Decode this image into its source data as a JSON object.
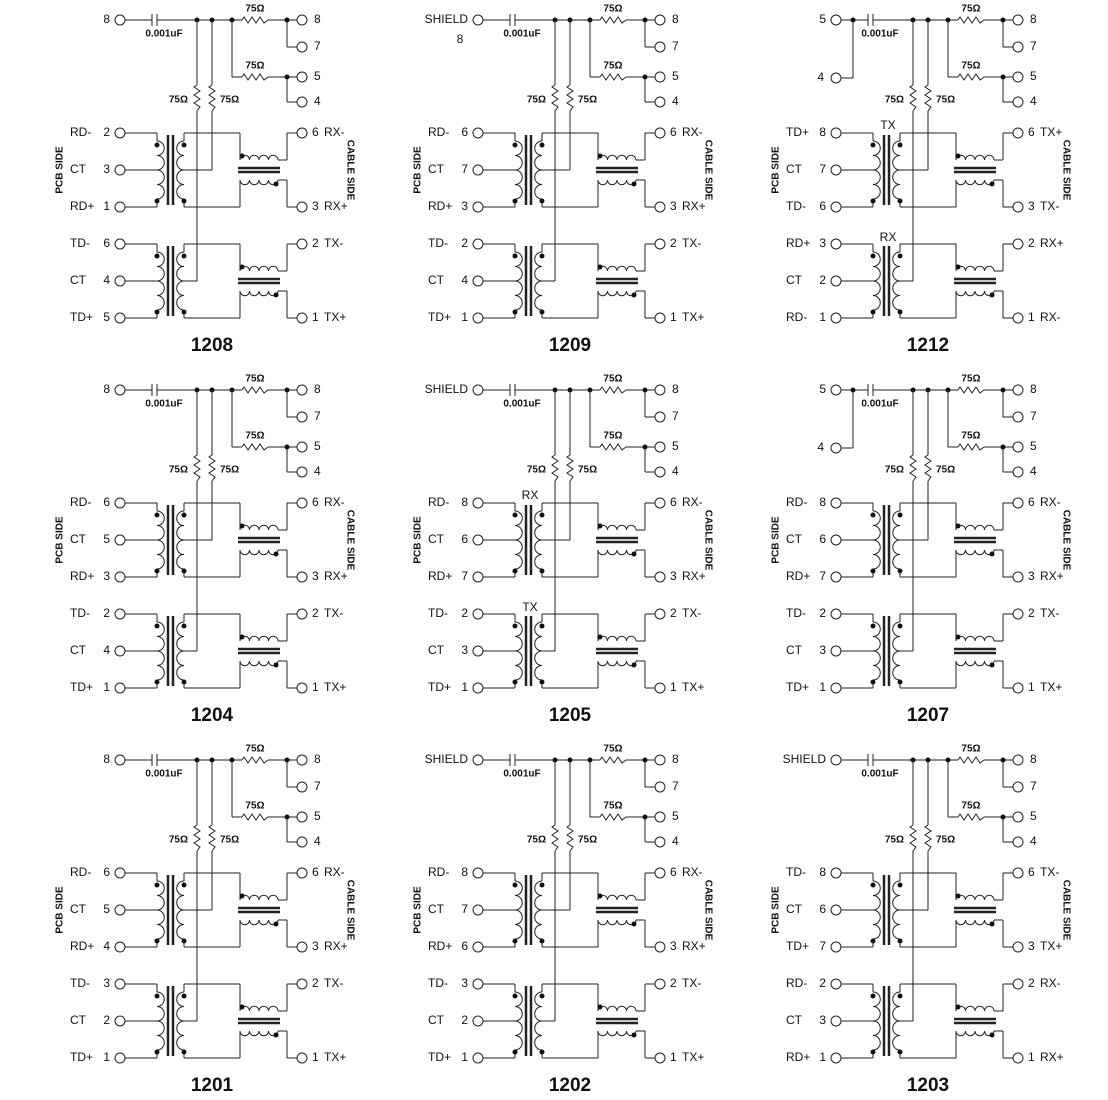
{
  "panels": [
    {
      "id": "1208",
      "shield": "8",
      "cap": "0.001uF",
      "resistor": "75Ω",
      "top_pins": [
        "8",
        "7",
        "5",
        "4"
      ],
      "pcb_side": "PCB SIDE",
      "cable_side": "CABLE SIDE",
      "left": [
        {
          "name": "RD-",
          "pin": "2"
        },
        {
          "name": "CT",
          "pin": "3"
        },
        {
          "name": "RD+",
          "pin": "1"
        },
        {
          "name": "TD-",
          "pin": "6"
        },
        {
          "name": "CT",
          "pin": "4"
        },
        {
          "name": "TD+",
          "pin": "5"
        }
      ],
      "right": [
        {
          "pin": "6",
          "name": "RX-"
        },
        {
          "pin": "3",
          "name": "RX+"
        },
        {
          "pin": "2",
          "name": "TX-"
        },
        {
          "pin": "1",
          "name": "TX+"
        }
      ]
    },
    {
      "id": "1209",
      "shield": "SHIELD",
      "shield_pin": "8",
      "cap": "0.001uF",
      "resistor": "75Ω",
      "top_pins": [
        "8",
        "7",
        "5",
        "4"
      ],
      "pcb_side": "PCB SIDE",
      "cable_side": "CABLE SIDE",
      "left": [
        {
          "name": "RD-",
          "pin": "6"
        },
        {
          "name": "CT",
          "pin": "7"
        },
        {
          "name": "RD+",
          "pin": "3"
        },
        {
          "name": "TD-",
          "pin": "2"
        },
        {
          "name": "CT",
          "pin": "4"
        },
        {
          "name": "TD+",
          "pin": "1"
        }
      ],
      "right": [
        {
          "pin": "6",
          "name": "RX-"
        },
        {
          "pin": "3",
          "name": "RX+"
        },
        {
          "pin": "2",
          "name": "TX-"
        },
        {
          "pin": "1",
          "name": "TX+"
        }
      ]
    },
    {
      "id": "1212",
      "shield": "5",
      "extra_pin": "4",
      "cap": "0.001uF",
      "resistor": "75Ω",
      "top_pins": [
        "8",
        "7",
        "5",
        "4"
      ],
      "pcb_side": "PCB SIDE",
      "cable_side": "CABLE SIDE",
      "tags": [
        "TX",
        "RX"
      ],
      "left": [
        {
          "name": "TD+",
          "pin": "8"
        },
        {
          "name": "CT",
          "pin": "7"
        },
        {
          "name": "TD-",
          "pin": "6"
        },
        {
          "name": "RD+",
          "pin": "3"
        },
        {
          "name": "CT",
          "pin": "2"
        },
        {
          "name": "RD-",
          "pin": "1"
        }
      ],
      "right": [
        {
          "pin": "6",
          "name": "TX+"
        },
        {
          "pin": "3",
          "name": "TX-"
        },
        {
          "pin": "2",
          "name": "RX+"
        },
        {
          "pin": "1",
          "name": "RX-"
        }
      ]
    },
    {
      "id": "1204",
      "shield": "8",
      "cap": "0.001uF",
      "resistor": "75Ω",
      "top_pins": [
        "8",
        "7",
        "5",
        "4"
      ],
      "pcb_side": "PCB SIDE",
      "cable_side": "CABLE SIDE",
      "left": [
        {
          "name": "RD-",
          "pin": "6"
        },
        {
          "name": "CT",
          "pin": "5"
        },
        {
          "name": "RD+",
          "pin": "3"
        },
        {
          "name": "TD-",
          "pin": "2"
        },
        {
          "name": "CT",
          "pin": "4"
        },
        {
          "name": "TD+",
          "pin": "1"
        }
      ],
      "right": [
        {
          "pin": "6",
          "name": "RX-"
        },
        {
          "pin": "3",
          "name": "RX+"
        },
        {
          "pin": "2",
          "name": "TX-"
        },
        {
          "pin": "1",
          "name": "TX+"
        }
      ]
    },
    {
      "id": "1205",
      "shield": "SHIELD",
      "cap": "0.001uF",
      "resistor": "75Ω",
      "top_pins": [
        "8",
        "7",
        "5",
        "4"
      ],
      "pcb_side": "PCB SIDE",
      "cable_side": "CABLE SIDE",
      "tags": [
        "RX",
        "TX"
      ],
      "left": [
        {
          "name": "RD-",
          "pin": "8"
        },
        {
          "name": "CT",
          "pin": "6"
        },
        {
          "name": "RD+",
          "pin": "7"
        },
        {
          "name": "TD-",
          "pin": "2"
        },
        {
          "name": "CT",
          "pin": "3"
        },
        {
          "name": "TD+",
          "pin": "1"
        }
      ],
      "right": [
        {
          "pin": "6",
          "name": "RX-"
        },
        {
          "pin": "3",
          "name": "RX+"
        },
        {
          "pin": "2",
          "name": "TX-"
        },
        {
          "pin": "1",
          "name": "TX+"
        }
      ]
    },
    {
      "id": "1207",
      "shield": "5",
      "extra_pin": "4",
      "cap": "0.001uF",
      "resistor": "75Ω",
      "top_pins": [
        "8",
        "7",
        "5",
        "4"
      ],
      "pcb_side": "PCB SIDE",
      "cable_side": "CABLE SIDE",
      "left": [
        {
          "name": "RD-",
          "pin": "8"
        },
        {
          "name": "CT",
          "pin": "6"
        },
        {
          "name": "RD+",
          "pin": "7"
        },
        {
          "name": "TD-",
          "pin": "2"
        },
        {
          "name": "CT",
          "pin": "3"
        },
        {
          "name": "TD+",
          "pin": "1"
        }
      ],
      "right": [
        {
          "pin": "6",
          "name": "RX-"
        },
        {
          "pin": "3",
          "name": "RX+"
        },
        {
          "pin": "2",
          "name": "TX-"
        },
        {
          "pin": "1",
          "name": "TX+"
        }
      ]
    },
    {
      "id": "1201",
      "shield": "8",
      "cap": "0.001uF",
      "resistor": "75Ω",
      "top_pins": [
        "8",
        "7",
        "5",
        "4"
      ],
      "pcb_side": "PCB SIDE",
      "cable_side": "CABLE SIDE",
      "left": [
        {
          "name": "RD-",
          "pin": "6"
        },
        {
          "name": "CT",
          "pin": "5"
        },
        {
          "name": "RD+",
          "pin": "4"
        },
        {
          "name": "TD-",
          "pin": "3"
        },
        {
          "name": "CT",
          "pin": "2"
        },
        {
          "name": "TD+",
          "pin": "1"
        }
      ],
      "right": [
        {
          "pin": "6",
          "name": "RX-"
        },
        {
          "pin": "3",
          "name": "RX+"
        },
        {
          "pin": "2",
          "name": "TX-"
        },
        {
          "pin": "1",
          "name": "TX+"
        }
      ]
    },
    {
      "id": "1202",
      "shield": "SHIELD",
      "cap": "0.001uF",
      "resistor": "75Ω",
      "top_pins": [
        "8",
        "7",
        "5",
        "4"
      ],
      "pcb_side": "PCB SIDE",
      "cable_side": "CABLE SIDE",
      "left": [
        {
          "name": "RD-",
          "pin": "8"
        },
        {
          "name": "CT",
          "pin": "7"
        },
        {
          "name": "RD+",
          "pin": "6"
        },
        {
          "name": "TD-",
          "pin": "3"
        },
        {
          "name": "CT",
          "pin": "2"
        },
        {
          "name": "TD+",
          "pin": "1"
        }
      ],
      "right": [
        {
          "pin": "6",
          "name": "RX-"
        },
        {
          "pin": "3",
          "name": "RX+"
        },
        {
          "pin": "2",
          "name": "TX-"
        },
        {
          "pin": "1",
          "name": "TX+"
        }
      ]
    },
    {
      "id": "1203",
      "shield": "SHIELD",
      "cap": "0.001uF",
      "resistor": "75Ω",
      "top_pins": [
        "8",
        "7",
        "5",
        "4"
      ],
      "pcb_side": "PCB SIDE",
      "cable_side": "CABLE SIDE",
      "left": [
        {
          "name": "TD-",
          "pin": "8"
        },
        {
          "name": "CT",
          "pin": "6"
        },
        {
          "name": "TD+",
          "pin": "7"
        },
        {
          "name": "RD-",
          "pin": "2"
        },
        {
          "name": "CT",
          "pin": "3"
        },
        {
          "name": "RD+",
          "pin": "1"
        }
      ],
      "right": [
        {
          "pin": "6",
          "name": "TX-"
        },
        {
          "pin": "3",
          "name": "TX+"
        },
        {
          "pin": "2",
          "name": "RX-"
        },
        {
          "pin": "1",
          "name": "RX+"
        }
      ]
    }
  ]
}
